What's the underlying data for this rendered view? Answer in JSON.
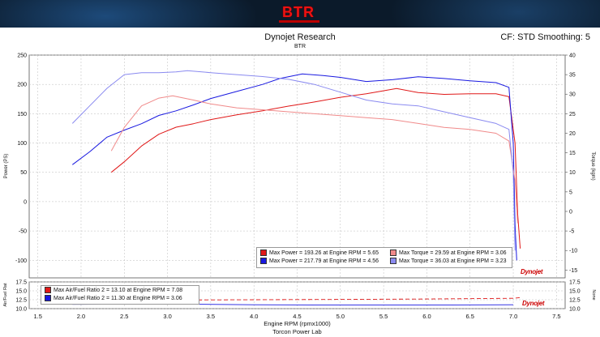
{
  "header": {
    "logo_text": "BTR",
    "title": "Dynojet Research",
    "subtitle": "BTR",
    "settings": "CF: STD Smoothing: 5",
    "footer": "Torcon Power Lab",
    "dyno_brand": "Dynojet"
  },
  "colors": {
    "power_run1": "#e01818",
    "power_run2": "#1818e0",
    "torque_run1": "#f08a8a",
    "torque_run2": "#8a8af0",
    "banner": "#0b1a2a",
    "afr_ref": "#e01818"
  },
  "legend_main": [
    {
      "text": "Max Power = 193.26 at Engine RPM = 5.65",
      "color": "#e01818"
    },
    {
      "text": "Max Power = 217.79 at Engine RPM = 4.56",
      "color": "#1818e0"
    },
    {
      "text": "Max Torque = 29.59 at Engine RPM = 3.06",
      "color": "#f08a8a"
    },
    {
      "text": "Max Torque = 36.03 at Engine RPM = 3.23",
      "color": "#8a8af0"
    }
  ],
  "legend_afr": [
    {
      "text": "Max Air/Fuel Ratio 2 = 13.10 at Engine RPM = 7.08",
      "color": "#e01818"
    },
    {
      "text": "Max Air/Fuel Ratio 2 = 11.30 at Engine RPM = 3.06",
      "color": "#1818e0"
    }
  ],
  "chart_data": [
    {
      "type": "line",
      "title": "Dynojet Research",
      "subtitle": "BTR",
      "xlabel": "Engine RPM (rpmx1000)",
      "ylabel": "Power (PS)",
      "y2label": "Torque (kgm)",
      "xlim": [
        1.4,
        7.6
      ],
      "ylim": [
        -130,
        250
      ],
      "y2lim": [
        -17,
        40
      ],
      "x_ticks": [
        "1.5",
        "2.0",
        "2.5",
        "3.0",
        "3.5",
        "4.0",
        "4.5",
        "5.0",
        "5.5",
        "6.0",
        "6.5",
        "7.0",
        "7.5"
      ],
      "y_ticks": [
        "250",
        "200",
        "150",
        "100",
        "50",
        "0",
        "-50",
        "-100"
      ],
      "y2_ticks": [
        "40",
        "35",
        "30",
        "25",
        "20",
        "15",
        "10",
        "5",
        "0",
        "-5",
        "-10",
        "-15"
      ],
      "grid": true,
      "series": [
        {
          "name": "Max Power = 193.26 at Engine RPM = 5.65",
          "axis": "left",
          "color": "#e01818",
          "x": [
            2.35,
            2.5,
            2.7,
            2.9,
            3.1,
            3.3,
            3.5,
            3.8,
            4.1,
            4.4,
            4.7,
            5.0,
            5.3,
            5.65,
            5.9,
            6.2,
            6.5,
            6.8,
            6.95,
            7.02,
            7.05,
            7.08
          ],
          "y": [
            50,
            68,
            95,
            115,
            127,
            133,
            140,
            148,
            155,
            163,
            170,
            178,
            184,
            193,
            186,
            183,
            184,
            184,
            179,
            100,
            -20,
            -80
          ]
        },
        {
          "name": "Max Power = 217.79 at Engine RPM = 4.56",
          "axis": "left",
          "color": "#1818e0",
          "x": [
            1.9,
            2.1,
            2.3,
            2.5,
            2.7,
            2.9,
            3.1,
            3.3,
            3.5,
            3.8,
            4.1,
            4.3,
            4.56,
            4.8,
            5.0,
            5.3,
            5.6,
            5.9,
            6.2,
            6.5,
            6.8,
            6.95,
            7.0,
            7.02,
            7.04
          ],
          "y": [
            63,
            85,
            110,
            122,
            133,
            147,
            155,
            165,
            176,
            188,
            200,
            210,
            218,
            215,
            212,
            205,
            208,
            213,
            210,
            206,
            203,
            195,
            100,
            -40,
            -100
          ]
        },
        {
          "name": "Max Torque = 29.59 at Engine RPM = 3.06",
          "axis": "right",
          "color": "#f08a8a",
          "x": [
            2.35,
            2.5,
            2.7,
            2.9,
            3.06,
            3.3,
            3.5,
            3.8,
            4.1,
            4.4,
            4.7,
            5.0,
            5.3,
            5.6,
            5.9,
            6.2,
            6.5,
            6.8,
            6.95,
            7.02,
            7.05
          ],
          "y": [
            15.5,
            21.5,
            27,
            29,
            29.59,
            28.5,
            27.5,
            26.5,
            26,
            25.5,
            25,
            24.5,
            24,
            23.5,
            22.5,
            21.5,
            21,
            20,
            18,
            8,
            -3
          ]
        },
        {
          "name": "Max Torque = 36.03 at Engine RPM = 3.23",
          "axis": "right",
          "color": "#8a8af0",
          "x": [
            1.9,
            2.1,
            2.3,
            2.5,
            2.7,
            2.9,
            3.1,
            3.23,
            3.5,
            3.8,
            4.1,
            4.4,
            4.7,
            5.0,
            5.3,
            5.6,
            5.9,
            6.2,
            6.5,
            6.8,
            6.95,
            7.0,
            7.02
          ],
          "y": [
            22.5,
            27,
            31.5,
            35,
            35.5,
            35.5,
            35.7,
            36.03,
            35.5,
            35,
            34.5,
            33.8,
            32.5,
            30.5,
            28.5,
            27.5,
            27,
            25.5,
            24,
            22.5,
            21,
            10,
            -10
          ]
        }
      ]
    },
    {
      "type": "line",
      "ylabel": "Air/Fuel Rat",
      "y2label": "None",
      "xlim": [
        1.4,
        7.6
      ],
      "ylim": [
        10,
        17.5
      ],
      "y_ticks": [
        "17.5",
        "15.0",
        "12.5",
        "10.0"
      ],
      "y2_ticks": [
        "17.5",
        "15.0",
        "12.5",
        "10.0"
      ],
      "series": [
        {
          "name": "Max Air/Fuel Ratio 2 = 13.10 at Engine RPM = 7.08",
          "color": "#e01818",
          "x": [
            2.3,
            3.0,
            4.0,
            5.0,
            6.0,
            7.0,
            7.08
          ],
          "y": [
            12.6,
            12.4,
            12.5,
            12.6,
            12.7,
            12.9,
            13.1
          ]
        },
        {
          "name": "Max Air/Fuel Ratio 2 = 11.30 at Engine RPM = 3.06",
          "color": "#1818e0",
          "x": [
            1.9,
            3.06,
            4.0,
            5.0,
            6.0,
            7.0
          ],
          "y": [
            11.2,
            11.3,
            11.1,
            11.0,
            11.0,
            11.1
          ]
        }
      ]
    }
  ]
}
